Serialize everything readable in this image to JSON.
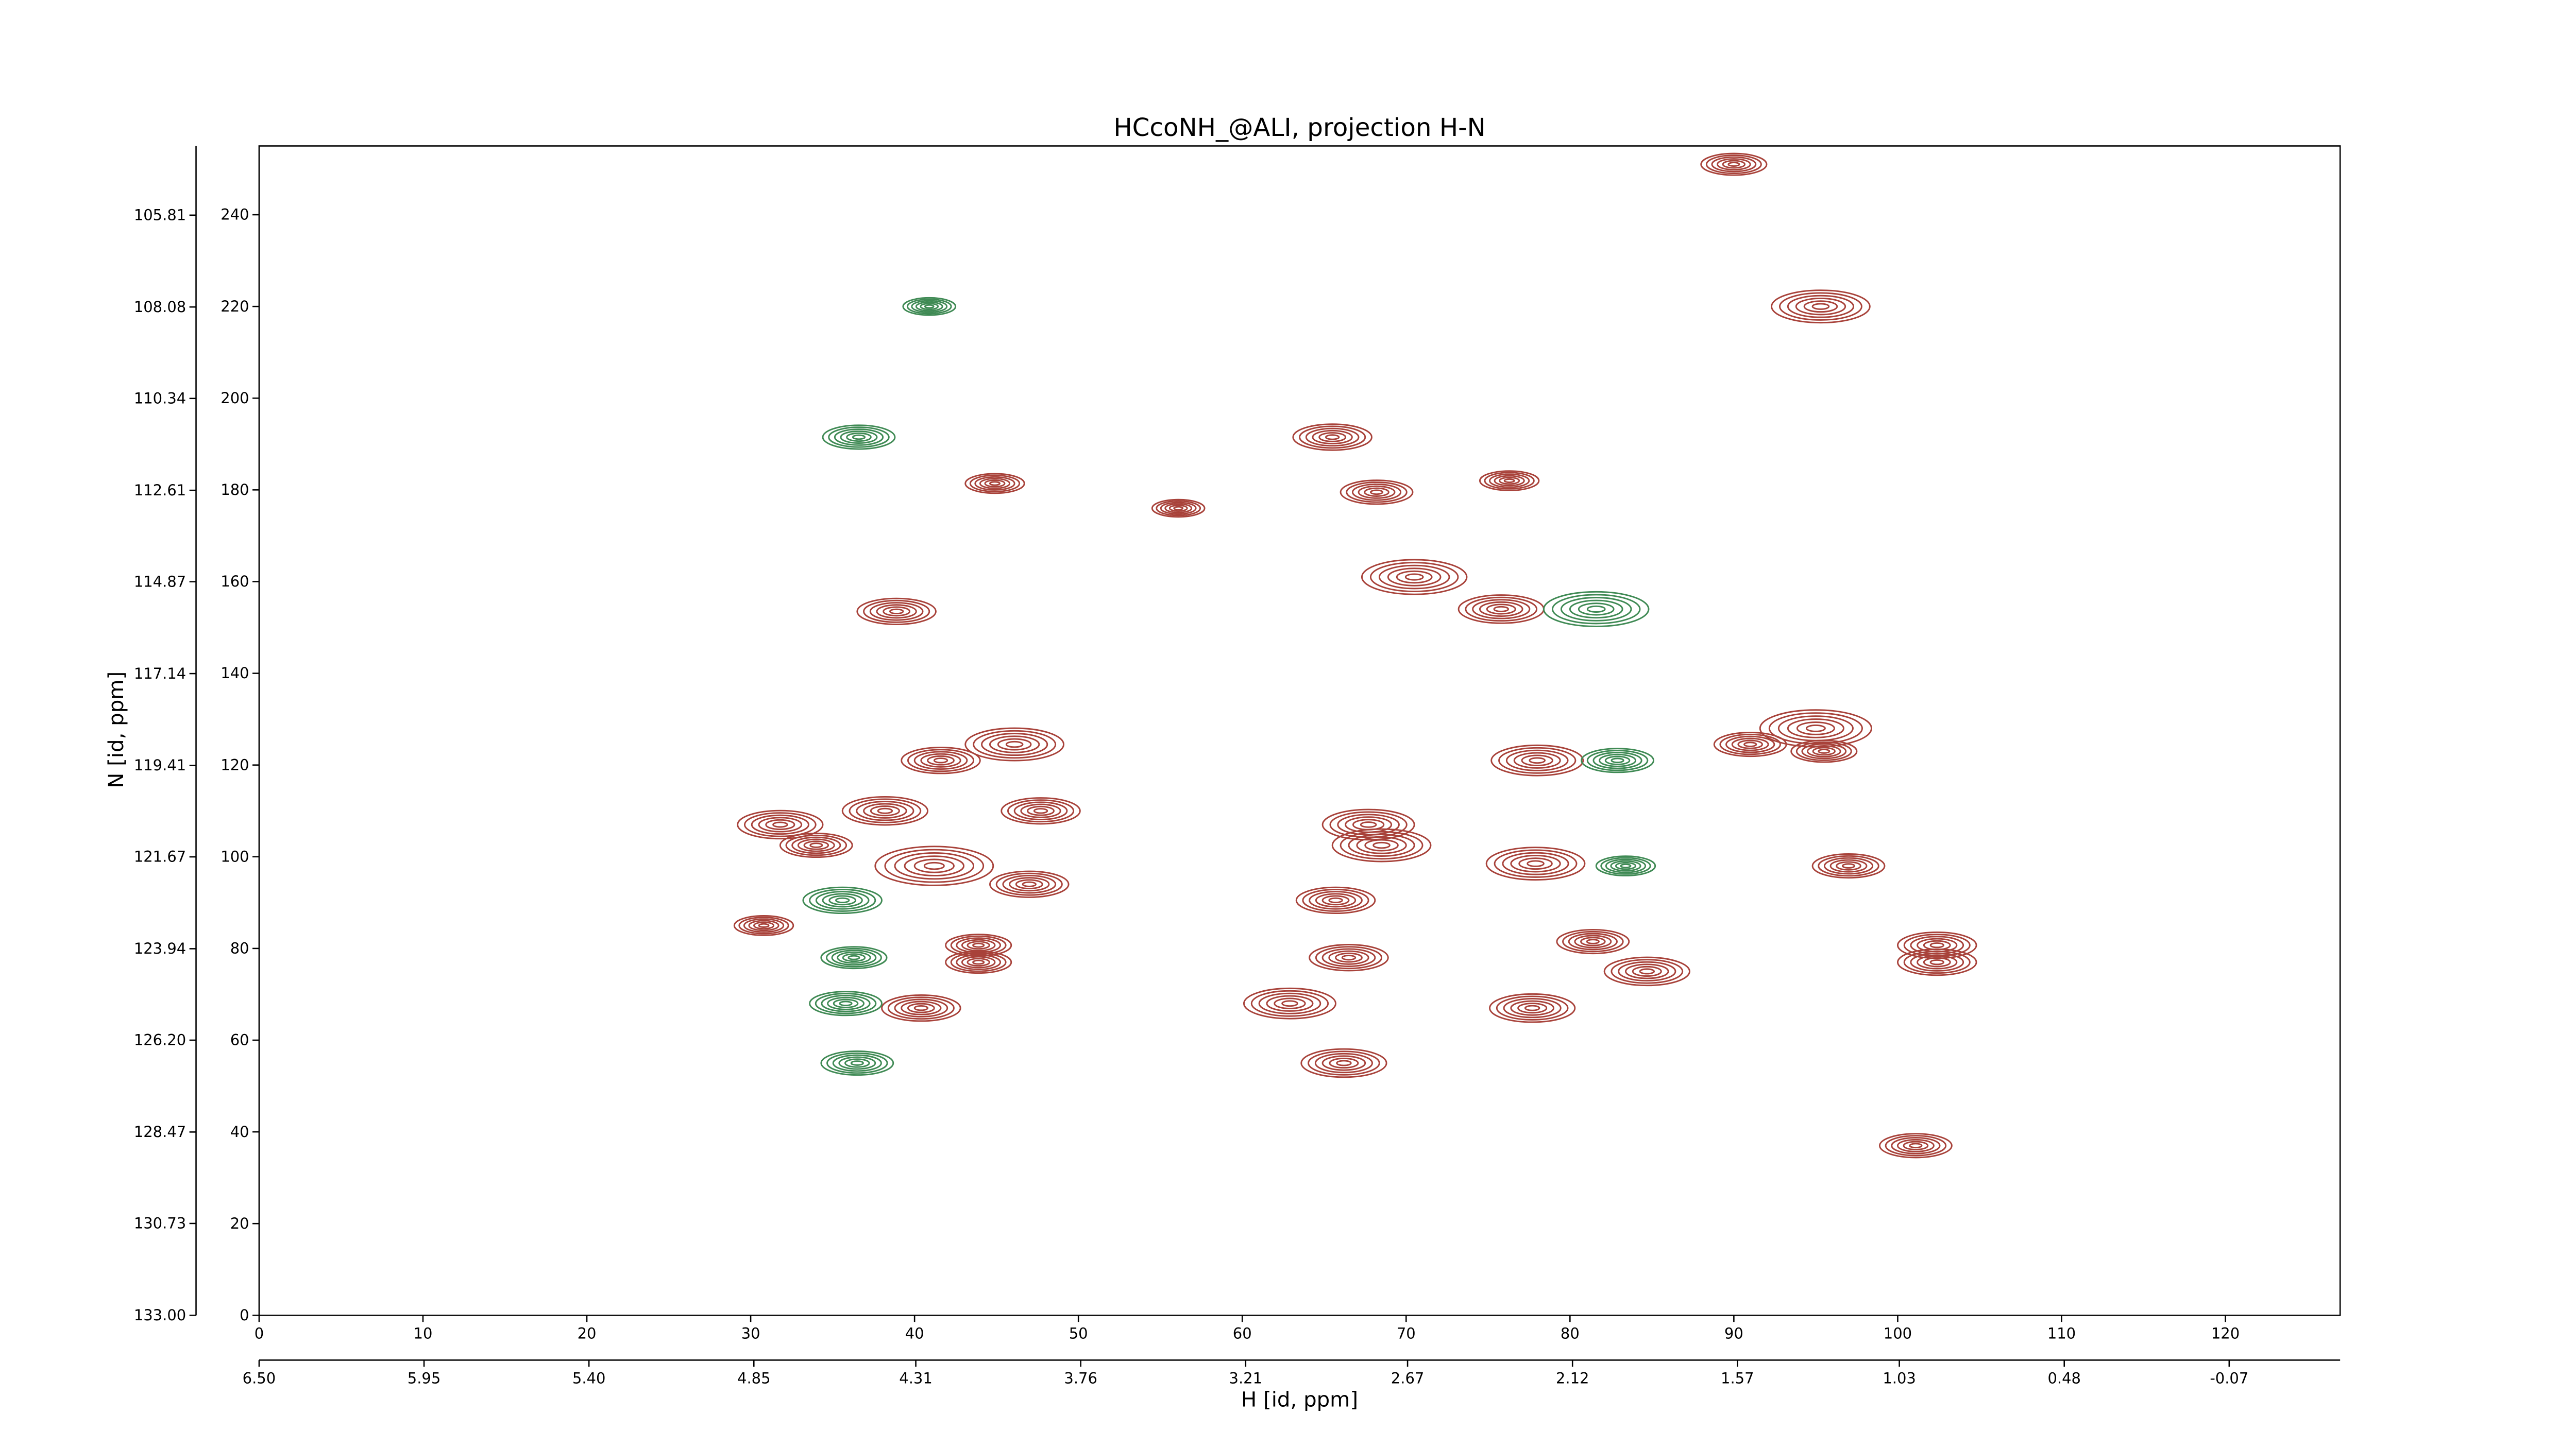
{
  "chart_data": {
    "type": "contour",
    "title": "HCcoNH_@ALI, projection H-N",
    "xlabel": "H [id, ppm]",
    "ylabel": "N [id, ppm]",
    "xlim": [
      0,
      127
    ],
    "ylim": [
      0,
      255
    ],
    "xticks": [
      0,
      10,
      20,
      30,
      40,
      50,
      60,
      70,
      80,
      90,
      100,
      110,
      120
    ],
    "yticks": [
      0,
      20,
      40,
      60,
      80,
      100,
      120,
      140,
      160,
      180,
      200,
      220,
      240
    ],
    "x2lim": [
      6.5,
      -0.44
    ],
    "x2ticks": [
      {
        "value": 6.5,
        "label": "6.50"
      },
      5.95,
      {
        "value": 5.4,
        "label": "5.40"
      },
      4.85,
      4.31,
      3.76,
      3.21,
      2.67,
      2.12,
      1.57,
      1.03,
      0.48,
      -0.07
    ],
    "y2lim": [
      133.0,
      104.1
    ],
    "y2ticks": [
      {
        "value": 133.0,
        "label": "133.00"
      },
      130.73,
      128.47,
      {
        "value": 126.2,
        "label": "126.20"
      },
      123.94,
      121.67,
      119.41,
      117.14,
      114.87,
      112.61,
      110.34,
      108.08,
      105.81
    ],
    "series": [
      {
        "color": "#a8423a",
        "x": [
          65.5,
          90.0,
          95.3,
          70.5,
          75.8,
          38.9,
          41.6,
          46.1,
          47.7,
          38.2,
          31.8,
          34.0,
          41.2,
          47.0,
          30.8,
          43.9,
          43.9,
          40.4,
          62.9,
          65.7,
          67.7,
          68.5,
          66.5,
          66.2,
          78.0,
          77.9,
          81.4,
          84.7,
          77.7,
          91.0,
          95.0,
          97.0,
          102.4,
          102.4,
          101.1,
          76.3,
          68.2,
          44.9,
          56.1,
          95.5
        ],
        "y": [
          191.5,
          251,
          220,
          161,
          154,
          153.5,
          121,
          124.5,
          110,
          110,
          107,
          102.5,
          98,
          94,
          85,
          80.7,
          77,
          67,
          68,
          90.5,
          107,
          102.5,
          78,
          55,
          121,
          98.5,
          81.5,
          75,
          67,
          124.5,
          128,
          98,
          80.7,
          77,
          37,
          182,
          179.5,
          181.4,
          176,
          123
        ],
        "size": [
          2.4,
          2.0,
          3.0,
          3.2,
          2.6,
          2.4,
          2.4,
          3.0,
          2.4,
          2.6,
          2.6,
          2.2,
          3.6,
          2.4,
          1.8,
          2.0,
          2.0,
          2.4,
          2.8,
          2.4,
          2.8,
          3.0,
          2.4,
          2.6,
          2.8,
          3.0,
          2.2,
          2.6,
          2.6,
          2.2,
          3.4,
          2.2,
          2.4,
          2.4,
          2.2,
          1.8,
          2.2,
          1.8,
          1.6,
          2.0
        ]
      },
      {
        "color": "#3f8a54",
        "x": [
          36.6,
          40.9,
          81.6,
          82.9,
          35.6,
          36.3,
          35.8,
          36.5,
          83.4
        ],
        "y": [
          191.5,
          220,
          154,
          121,
          90.5,
          78,
          68,
          55,
          98
        ],
        "size": [
          2.2,
          1.6,
          3.2,
          2.2,
          2.4,
          2.0,
          2.2,
          2.2,
          1.8
        ]
      }
    ]
  }
}
